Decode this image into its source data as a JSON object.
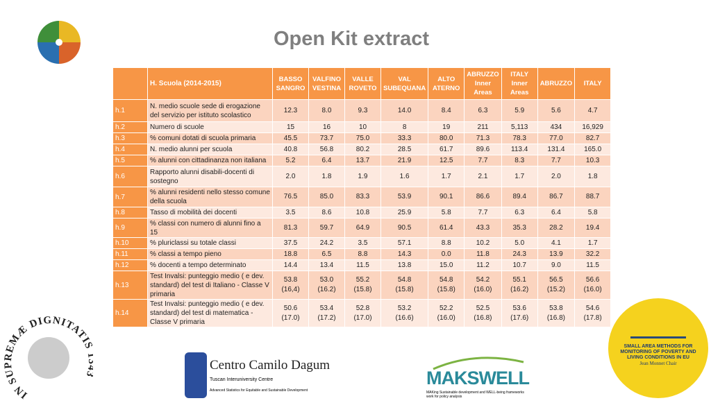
{
  "title": "Open Kit extract",
  "table": {
    "header_label": "H.  Scuola (2014-2015)",
    "columns": [
      [
        "BASSO",
        "SANGRO"
      ],
      [
        "VALFINO",
        "VESTINA"
      ],
      [
        "VALLE",
        "ROVETO"
      ],
      [
        "VAL",
        "SUBEQUANA"
      ],
      [
        "ALTO",
        "ATERNO"
      ],
      [
        "ABRUZZO",
        "Inner",
        "Areas"
      ],
      [
        "ITALY",
        "Inner",
        "Areas"
      ],
      [
        "ABRUZZO"
      ],
      [
        "ITALY"
      ]
    ],
    "rows": [
      {
        "id": "h.1",
        "label": "N. medio scuole sede di erogazione del servizio per istituto scolastico",
        "values": [
          "12.3",
          "8.0",
          "9.3",
          "14.0",
          "8.4",
          "6.3",
          "5.9",
          "5.6",
          "4.7"
        ]
      },
      {
        "id": "h.2",
        "label": "Numero di scuole",
        "values": [
          "15",
          "16",
          "10",
          "8",
          "19",
          "211",
          "5,113",
          "434",
          "16,929"
        ]
      },
      {
        "id": "h.3",
        "label": "% comuni dotati di scuola primaria",
        "values": [
          "45.5",
          "73.7",
          "75.0",
          "33.3",
          "80.0",
          "71.3",
          "78.3",
          "77.0",
          "82.7"
        ]
      },
      {
        "id": "h.4",
        "label": "N. medio alunni per scuola",
        "values": [
          "40.8",
          "56.8",
          "80.2",
          "28.5",
          "61.7",
          "89.6",
          "113.4",
          "131.4",
          "165.0"
        ]
      },
      {
        "id": "h.5",
        "label": "% alunni con cittadinanza non italiana",
        "values": [
          "5.2",
          "6.4",
          "13.7",
          "21.9",
          "12.5",
          "7.7",
          "8.3",
          "7.7",
          "10.3"
        ]
      },
      {
        "id": "h.6",
        "label": "Rapporto alunni disabili-docenti di sostegno",
        "values": [
          "2.0",
          "1.8",
          "1.9",
          "1.6",
          "1.7",
          "2.1",
          "1.7",
          "2.0",
          "1.8"
        ]
      },
      {
        "id": "h.7",
        "label": "% alunni residenti nello stesso comune della scuola",
        "values": [
          "76.5",
          "85.0",
          "83.3",
          "53.9",
          "90.1",
          "86.6",
          "89.4",
          "86.7",
          "88.7"
        ]
      },
      {
        "id": "h.8",
        "label": "Tasso di mobilità dei docenti",
        "values": [
          "3.5",
          "8.6",
          "10.8",
          "25.9",
          "5.8",
          "7.7",
          "6.3",
          "6.4",
          "5.8"
        ]
      },
      {
        "id": "h.9",
        "label": "% classi con numero di alunni fino a 15",
        "values": [
          "81.3",
          "59.7",
          "64.9",
          "90.5",
          "61.4",
          "43.3",
          "35.3",
          "28.2",
          "19.4"
        ]
      },
      {
        "id": "h.10",
        "label": "% pluriclassi su totale classi",
        "values": [
          "37.5",
          "24.2",
          "3.5",
          "57.1",
          "8.8",
          "10.2",
          "5.0",
          "4.1",
          "1.7"
        ]
      },
      {
        "id": "h.11",
        "label": "% classi a tempo pieno",
        "values": [
          "18.8",
          "6.5",
          "8.8",
          "14.3",
          "0.0",
          "11.8",
          "24.3",
          "13.9",
          "32.2"
        ]
      },
      {
        "id": "h.12",
        "label": "% docenti a tempo determinato",
        "values": [
          "14.4",
          "13.4",
          "11.5",
          "13.8",
          "15.0",
          "11.2",
          "10.7",
          "9.0",
          "11.5"
        ]
      },
      {
        "id": "h.13",
        "label": "Test Invalsi: punteggio medio ( e dev. standard) del test di Italiano - Classe V primaria",
        "values": [
          [
            "53.8",
            "(16,4)"
          ],
          [
            "53.0",
            "(16.2)"
          ],
          [
            "55.2",
            "(15.8)"
          ],
          [
            "54.8",
            "(15.8)"
          ],
          [
            "54.8",
            "(15.8)"
          ],
          [
            "54.2",
            "(16.0)"
          ],
          [
            "55.1",
            "(16.2)"
          ],
          [
            "56.5",
            "(15.2)"
          ],
          [
            "56.6",
            "(16.0)"
          ]
        ]
      },
      {
        "id": "h.14",
        "label": "Test Invalsi: punteggio medio ( e dev. standard) del test di matematica - Classe V primaria",
        "values": [
          [
            "50.6",
            "(17.0)"
          ],
          [
            "53.4",
            "(17.2)"
          ],
          [
            "52.8",
            "(17.0)"
          ],
          [
            "53.2",
            "(16.6)"
          ],
          [
            "52.2",
            "(16.0)"
          ],
          [
            "52.5",
            "(16.8)"
          ],
          [
            "53.6",
            "(17.6)"
          ],
          [
            "53.8",
            "(16.8)"
          ],
          [
            "54.6",
            "(17.8)"
          ]
        ]
      }
    ]
  },
  "logos": {
    "seal": "IN SUPREMÆ DIGNITATIS 1343",
    "dagum_title": "Centro Camilo Dagum",
    "dagum_sub1": "Tuscan Interuniversity Centre",
    "dagum_sub2": "Advanced Statistics for Equitable and Sustainable Development",
    "makswell": "MAKSWELL",
    "makswell_sub": "MAKing Sustainable development and WELL-being frameworks work for policy analysis",
    "sam": "SMALL AREA METHODS FOR MONITORING OF POVERTY AND LIVING CONDITIONS IN EU",
    "sam_chair": "Jean Monnet Chair"
  },
  "colors": {
    "accent": "#f79646",
    "row_dark": "#fbd4bf",
    "row_light": "#fde9df",
    "title": "#7f7f7f"
  }
}
